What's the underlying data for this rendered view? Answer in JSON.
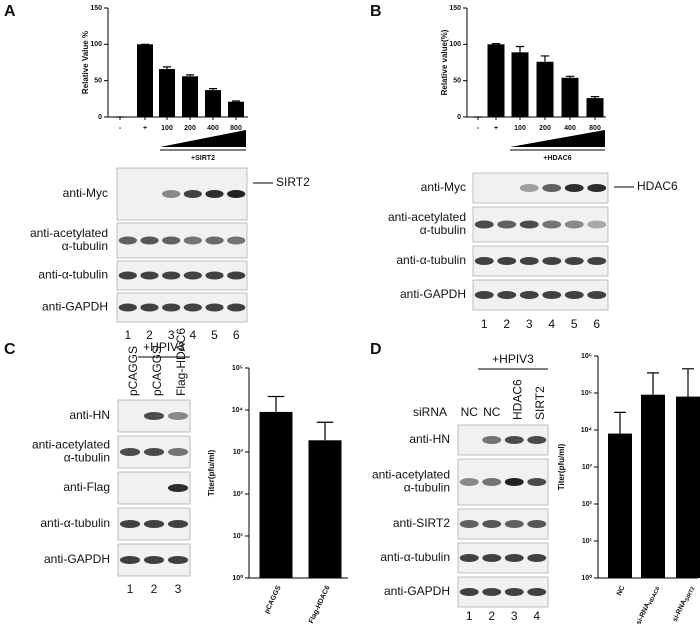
{
  "panels": [
    "A",
    "B",
    "C",
    "D"
  ],
  "chart_data": [
    {
      "type": "bar",
      "y_label": "Relative Value %",
      "categories": [
        "-",
        "+",
        "100",
        "200",
        "400",
        "800"
      ],
      "values": [
        0,
        100,
        66,
        56,
        37,
        21
      ],
      "errors": [
        0,
        0,
        3,
        2,
        2,
        1
      ],
      "color": "#000000",
      "ylim": [
        0,
        150
      ],
      "yticks": [
        0,
        50,
        100,
        150
      ],
      "log_scale": false
    },
    {
      "type": "bar",
      "y_label": "Relative value(%)",
      "categories": [
        "-",
        "+",
        "100",
        "200",
        "400",
        "800"
      ],
      "values": [
        0,
        100,
        89,
        76,
        54,
        26
      ],
      "errors": [
        0,
        1,
        8,
        8,
        2,
        2
      ],
      "color": "#000000",
      "ylim": [
        0,
        150
      ],
      "yticks": [
        0,
        50,
        100,
        150
      ],
      "log_scale": false
    },
    {
      "type": "bar",
      "y_label": "Titer(pfu/ml)",
      "categories": [
        "pCAGGS",
        "Flag-HDAC6"
      ],
      "category_subscripts": [
        null,
        null
      ],
      "values": [
        9000,
        1900
      ],
      "errors": [
        12000,
        3200
      ],
      "color": "#000000",
      "ylim": [
        1,
        100000
      ],
      "yticks": [
        {
          "value": 1,
          "label": "10⁰"
        },
        {
          "value": 10,
          "label": "10¹"
        },
        {
          "value": 100,
          "label": "10²"
        },
        {
          "value": 1000,
          "label": "10³"
        },
        {
          "value": 10000,
          "label": "10⁴"
        },
        {
          "value": 100000,
          "label": "10⁵"
        }
      ],
      "log_scale": true
    },
    {
      "type": "bar",
      "y_label": "Titer(pfu/ml)",
      "categories": [
        "NC",
        "si-RNA",
        "si-RNA"
      ],
      "category_subscripts": [
        null,
        "HDAC6",
        "SIRT2"
      ],
      "values": [
        8000,
        90000,
        80000
      ],
      "errors": [
        22000,
        260000,
        370000
      ],
      "color": "#000000",
      "ylim": [
        1,
        1000000
      ],
      "yticks": [
        {
          "value": 1,
          "label": "10⁰"
        },
        {
          "value": 10,
          "label": "10¹"
        },
        {
          "value": 100,
          "label": "10²"
        },
        {
          "value": 1000,
          "label": "10³"
        },
        {
          "value": 10000,
          "label": "10⁴"
        },
        {
          "value": 100000,
          "label": "10⁵"
        },
        {
          "value": 1000000,
          "label": "10⁶"
        }
      ],
      "log_scale": true
    }
  ],
  "blots": [
    {
      "treatment": "+SIRT2",
      "marker": "SIRT2",
      "rows": [
        [
          "anti-Myc"
        ],
        [
          "anti-acetylated",
          "α-tubulin"
        ],
        [
          "anti-α-tubulin"
        ],
        [
          "anti-GAPDH"
        ]
      ],
      "lanes": [
        "1",
        "2",
        "3",
        "4",
        "5",
        "6"
      ]
    },
    {
      "treatment": "+HDAC6",
      "marker": "HDAC6",
      "rows": [
        [
          "anti-Myc"
        ],
        [
          "anti-acetylated",
          "α-tubulin"
        ],
        [
          "anti-α-tubulin"
        ],
        [
          "anti-GAPDH"
        ]
      ],
      "lanes": [
        "1",
        "2",
        "3",
        "4",
        "5",
        "6"
      ]
    },
    {
      "treatment": "+HPIV3",
      "lane_headers": [
        "pCAGGS",
        "pCAGGS",
        "Flag-HDAC6"
      ],
      "rows": [
        [
          "anti-HN"
        ],
        [
          "anti-acetylated",
          "α-tubulin"
        ],
        [
          "anti-Flag"
        ],
        [
          "anti-α-tubulin"
        ],
        [
          "anti-GAPDH"
        ]
      ],
      "lanes": [
        "1",
        "2",
        "3"
      ]
    },
    {
      "treatment": "+HPIV3",
      "header_label": "siRNA",
      "lane_headers": [
        "NC",
        "NC",
        "HDAC6",
        "SIRT2"
      ],
      "rows": [
        [
          "anti-HN"
        ],
        [
          "anti-acetylated",
          "α-tubulin"
        ],
        [
          "anti-SIRT2"
        ],
        [
          "anti-α-tubulin"
        ],
        [
          "anti-GAPDH"
        ]
      ],
      "lanes": [
        "1",
        "2",
        "3",
        "4"
      ]
    }
  ]
}
